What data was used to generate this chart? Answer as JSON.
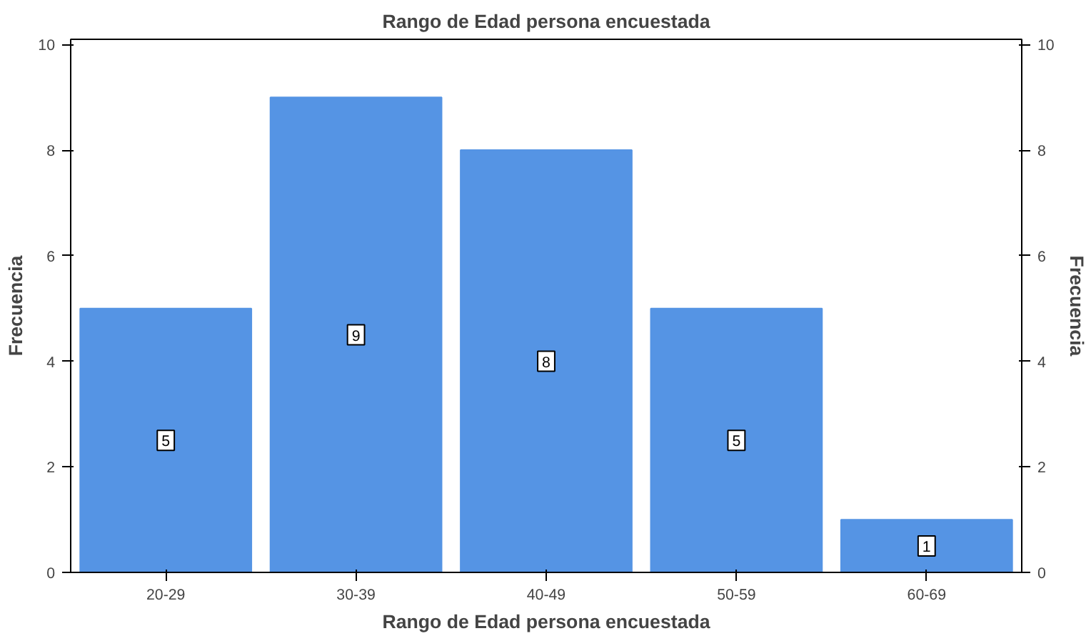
{
  "chart_data": {
    "type": "bar",
    "title": "Rango de Edad persona encuestada",
    "xlabel": "Rango de Edad persona encuestada",
    "ylabel": "Frecuencia",
    "y2label": "Frecuencia",
    "categories": [
      "20-29",
      "30-39",
      "40-49",
      "50-59",
      "60-69"
    ],
    "values": [
      5,
      9,
      8,
      5,
      1
    ],
    "color": "#5594e4",
    "ylim": [
      0,
      10.1
    ],
    "yticks": [
      0,
      2,
      4,
      6,
      8,
      10
    ],
    "y2lim": [
      0,
      10.1
    ],
    "y2ticks": [
      0,
      2,
      4,
      6,
      8,
      10
    ],
    "data_labels": true,
    "grid": false
  }
}
